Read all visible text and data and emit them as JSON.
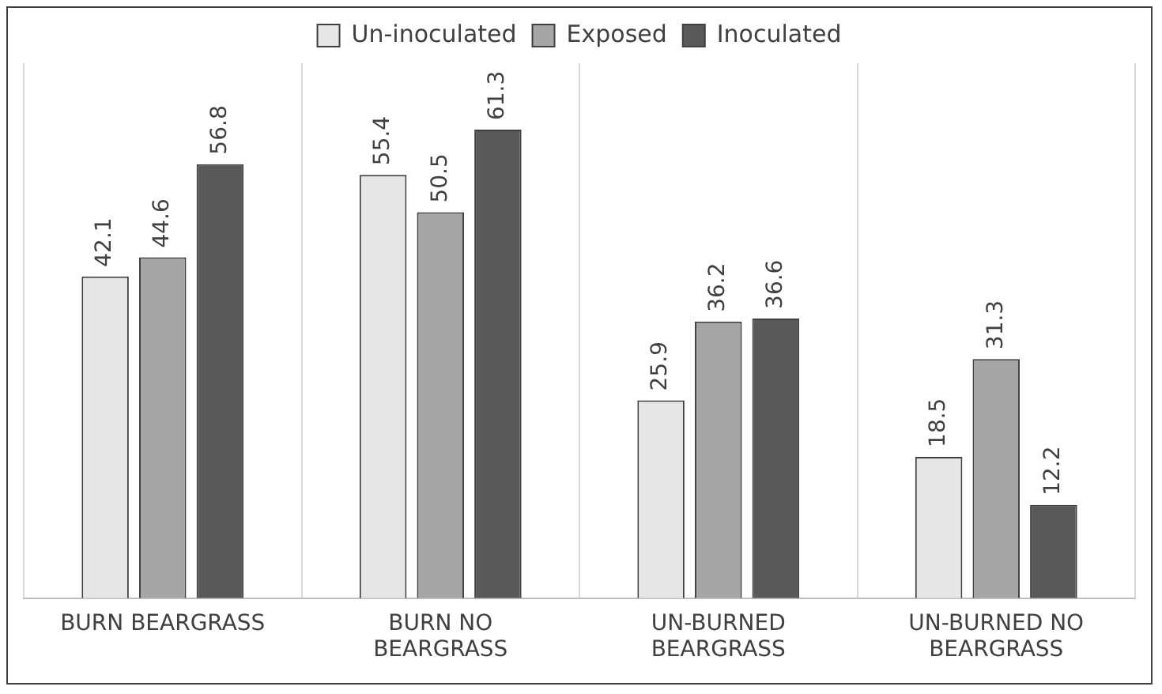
{
  "chart_data": {
    "type": "bar",
    "categories": [
      "BURN BEARGRASS",
      "BURN NO BEARGRASS",
      "UN-BURNED BEARGRASS",
      "UN-BURNED NO BEARGRASS"
    ],
    "series": [
      {
        "name": "Un-inoculated",
        "color": "#e6e6e6",
        "values": [
          42.1,
          55.4,
          25.9,
          18.5
        ]
      },
      {
        "name": "Exposed",
        "color": "#a6a6a6",
        "values": [
          44.6,
          50.5,
          36.2,
          31.3
        ]
      },
      {
        "name": "Inoculated",
        "color": "#595959",
        "values": [
          56.8,
          61.3,
          36.6,
          12.2
        ]
      }
    ],
    "data_labels": true,
    "legend": "top",
    "grid": "x"
  }
}
